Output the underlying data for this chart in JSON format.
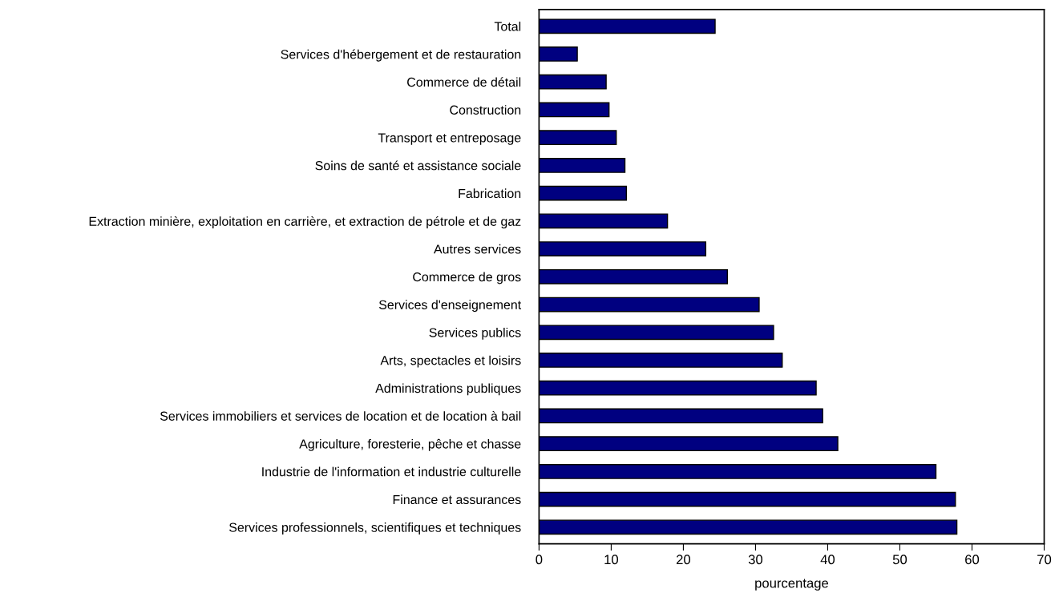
{
  "chart_data": {
    "type": "bar",
    "orientation": "horizontal",
    "xlabel": "pourcentage",
    "categories": [
      "Total",
      "Services d'hébergement et de restauration",
      "Commerce de détail",
      "Construction",
      "Transport et entreposage",
      "Soins de santé et assistance sociale",
      "Fabrication",
      "Extraction minière, exploitation en carrière, et extraction de pétrole et de gaz",
      "Autres services",
      "Commerce de gros",
      "Services d'enseignement",
      "Services publics",
      "Arts, spectacles et loisirs",
      "Administrations publiques",
      "Services immobiliers et services de location et de location à bail",
      "Agriculture, foresterie, pêche et chasse",
      "Industrie de l'information et industrie culturelle",
      "Finance et assurances",
      "Services professionnels, scientifiques et techniques"
    ],
    "values": [
      24.4,
      5.3,
      9.3,
      9.7,
      10.7,
      11.9,
      12.1,
      17.8,
      23.1,
      26.1,
      30.5,
      32.5,
      33.7,
      38.4,
      39.3,
      41.4,
      55.0,
      57.7,
      57.9
    ],
    "color": "#000080",
    "xlim": [
      0,
      70
    ],
    "xticks": [
      0,
      10,
      20,
      30,
      40,
      50,
      60,
      70
    ],
    "grid": false,
    "legend": false
  }
}
